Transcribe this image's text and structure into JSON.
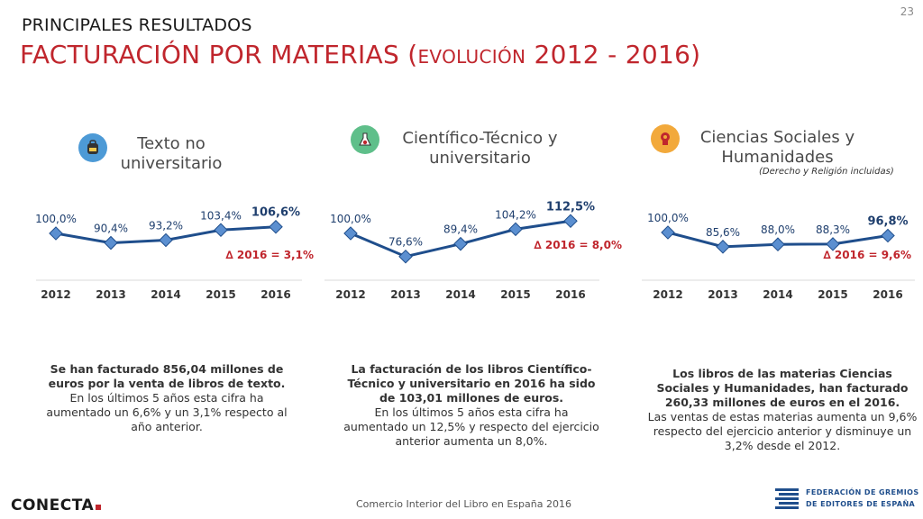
{
  "page_number": "23",
  "subtitle": "PRINCIPALES RESULTADOS",
  "title": {
    "main": "FACTURACIÓN POR MATERIAS (",
    "small": "EVOLUCIÓN",
    "tail": " 2012 - 2016)"
  },
  "colors": {
    "line": "#1f4e8c",
    "marker": "#5b8fd0",
    "accent": "#c0262d"
  },
  "panels": [
    {
      "title_line1": "Texto no",
      "title_line2": "universitario",
      "note": "",
      "icon": "backpack-icon",
      "icon_bg": "#4d9ad6",
      "summary_bold": "Se han facturado 856,04 millones de euros por la venta de libros de texto.",
      "summary_text": "En los últimos 5 años esta cifra ha aumentado un 6,6% y un 3,1% respecto al año anterior."
    },
    {
      "title_line1": "Científico-Técnico y",
      "title_line2": "universitario",
      "note": "",
      "icon": "flask-icon",
      "icon_bg": "#5fbf8a",
      "summary_bold": "La facturación de los libros Científico-Técnico y universitario en 2016 ha sido de 103,01 millones de euros.",
      "summary_text": "En los últimos 5 años esta cifra ha aumentado un 12,5% y respecto del ejercicio anterior aumenta un 8,0%."
    },
    {
      "title_line1": "Ciencias Sociales y",
      "title_line2": "Humanidades",
      "note": "(Derecho y Religión incluidas)",
      "icon": "head-icon",
      "icon_bg": "#f2a93b",
      "summary_bold": "Los libros de las materias Ciencias Sociales y Humanidades, han facturado 260,33 millones de euros en el 2016.",
      "summary_text": "Las ventas de estas materias aumenta un 9,6% respecto del ejercicio anterior y disminuye un 3,2% desde el 2012."
    }
  ],
  "chart_data": [
    {
      "type": "line",
      "categories": [
        "2012",
        "2013",
        "2014",
        "2015",
        "2016"
      ],
      "values": [
        100.0,
        90.4,
        93.2,
        103.4,
        106.6
      ],
      "labels": [
        "100,0%",
        "90,4%",
        "93,2%",
        "103,4%",
        "106,6%"
      ],
      "annotation": "∆ 2016 = 3,1%"
    },
    {
      "type": "line",
      "categories": [
        "2012",
        "2013",
        "2014",
        "2015",
        "2016"
      ],
      "values": [
        100.0,
        76.6,
        89.4,
        104.2,
        112.5
      ],
      "labels": [
        "100,0%",
        "76,6%",
        "89,4%",
        "104,2%",
        "112,5%"
      ],
      "annotation": "∆ 2016 = 8,0%"
    },
    {
      "type": "line",
      "categories": [
        "2012",
        "2013",
        "2014",
        "2015",
        "2016"
      ],
      "values": [
        100.0,
        85.6,
        88.0,
        88.3,
        96.8
      ],
      "labels": [
        "100,0%",
        "85,6%",
        "88,0%",
        "88,3%",
        "96,8%"
      ],
      "annotation": "∆ 2016 = 9,6%"
    }
  ],
  "footer": {
    "text": "Comercio Interior del Libro en España 2016",
    "left_logo": "CONECTA",
    "right_logo_line1": "FEDERACIÓN DE GREMIOS",
    "right_logo_line2": "DE EDITORES DE ESPAÑA"
  }
}
